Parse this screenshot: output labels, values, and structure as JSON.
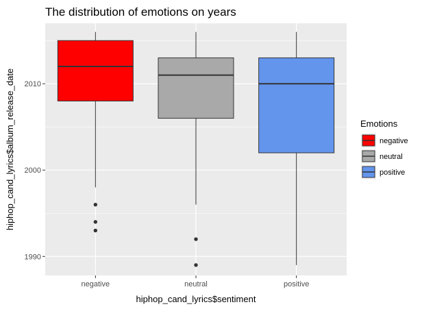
{
  "chart_data": {
    "type": "boxplot",
    "title": "The distribution of emotions on years",
    "xlabel": "hiphop_cand_lyrics$sentiment",
    "ylabel": "hiphop_cand_lyrics$album_release_date",
    "categories": [
      "negative",
      "neutral",
      "positive"
    ],
    "ylim": [
      1987.8,
      2017
    ],
    "yticks": [
      1990,
      2000,
      2010
    ],
    "grid": true,
    "legend_title": "Emotions",
    "legend_position": "right",
    "series": [
      {
        "name": "negative",
        "color": "#FF0000",
        "whisker_low": 1998,
        "q1": 2008,
        "median": 2012,
        "q3": 2015,
        "whisker_high": 2016,
        "outliers": [
          1996,
          1994,
          1993
        ]
      },
      {
        "name": "neutral",
        "color": "#A9A9A9",
        "whisker_low": 1996,
        "q1": 2006,
        "median": 2011,
        "q3": 2013,
        "whisker_high": 2016,
        "outliers": [
          1992,
          1989
        ]
      },
      {
        "name": "positive",
        "color": "#6495ED",
        "whisker_low": 1989,
        "q1": 2002,
        "median": 2010,
        "q3": 2013,
        "whisker_high": 2016,
        "outliers": []
      }
    ]
  }
}
